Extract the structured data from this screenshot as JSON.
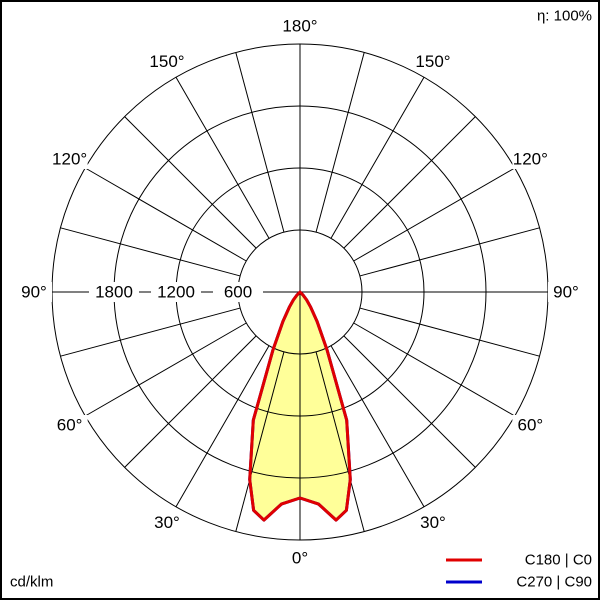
{
  "chart_data": {
    "type": "polar",
    "efficiency_label": "η: 100%",
    "unit_label": "cd/klm",
    "radial_ticks": [
      600,
      1200,
      1800,
      2400
    ],
    "radial_tick_labels": [
      "600",
      "1200",
      "1800"
    ],
    "rmax": 2400,
    "angle_labels": [
      "0°",
      "30°",
      "60°",
      "90°",
      "120°",
      "150°",
      "180°"
    ],
    "grid": true,
    "legend_position": "bottom-right",
    "angles": [
      0,
      5,
      9,
      12,
      15,
      20,
      25,
      30,
      35,
      40,
      45,
      50,
      90,
      180
    ],
    "series": [
      {
        "name": "C270 | C90",
        "color": "#0000cc",
        "values": [
          1994,
          2060,
          2235,
          2160,
          1880,
          1320,
          620,
          330,
          180,
          100,
          40,
          0,
          0,
          0
        ]
      },
      {
        "name": "C180 | C0",
        "color": "#e00000",
        "values": [
          1994,
          2060,
          2235,
          2160,
          1880,
          1320,
          620,
          330,
          180,
          100,
          40,
          0,
          0,
          0
        ]
      }
    ],
    "fill_color": "#ffff99"
  }
}
